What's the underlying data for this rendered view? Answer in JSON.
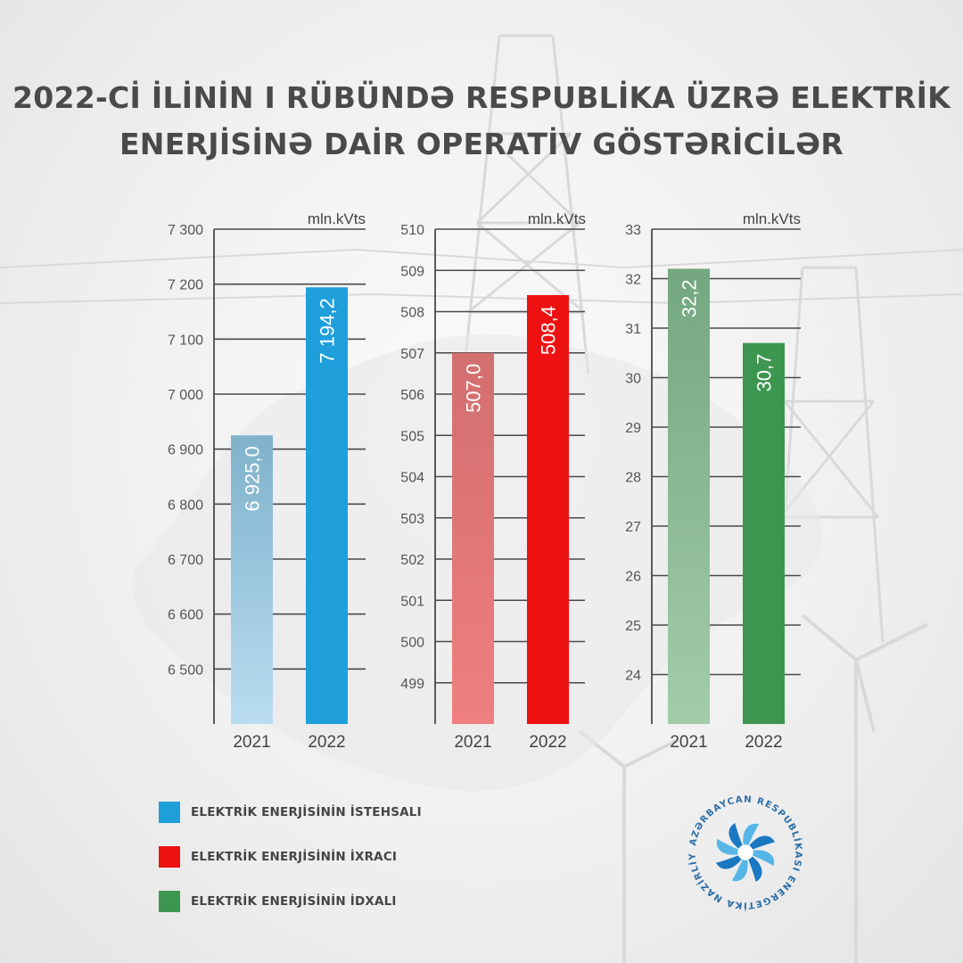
{
  "title": {
    "line1": "2022-Cİ İLİNİN I RÜBÜNDƏ RESPUBLİKA ÜZRƏ ELEKTRİK",
    "line2": "ENERJİSİNƏ DAİR OPERATİV GÖSTƏRİCİLƏR"
  },
  "chart_data": [
    {
      "type": "bar",
      "name": "production",
      "unit_label": "mln.kVts",
      "categories": [
        "2021",
        "2022"
      ],
      "values": [
        6925.0,
        7194.2
      ],
      "value_labels": [
        "6 925,0",
        "7 194,2"
      ],
      "ylim": [
        6400,
        7300
      ],
      "yticks": [
        6500,
        6600,
        6700,
        6800,
        6900,
        7000,
        7100,
        7200,
        7300
      ],
      "ytick_labels": [
        "6 500",
        "6 600",
        "6 700",
        "6 800",
        "6 900",
        "7 000",
        "7 100",
        "7 200",
        "7 300"
      ],
      "colors": [
        [
          "#b9dcf2",
          "#7fb2cb"
        ],
        [
          "#1e9fda",
          "#1e9fda"
        ]
      ],
      "grid": true
    },
    {
      "type": "bar",
      "name": "export",
      "unit_label": "mln.kVts",
      "categories": [
        "2021",
        "2022"
      ],
      "values": [
        507.0,
        508.4
      ],
      "value_labels": [
        "507,0",
        "508,4"
      ],
      "ylim": [
        498,
        510
      ],
      "yticks": [
        499,
        500,
        501,
        502,
        503,
        504,
        505,
        506,
        507,
        508,
        509,
        510
      ],
      "ytick_labels": [
        "499",
        "500",
        "501",
        "502",
        "503",
        "504",
        "505",
        "506",
        "507",
        "508",
        "509",
        "510"
      ],
      "colors": [
        [
          "#f07f7f",
          "#d26f6f"
        ],
        [
          "#ee1111",
          "#ee1111"
        ]
      ],
      "grid": true
    },
    {
      "type": "bar",
      "name": "import",
      "unit_label": "mln.kVts",
      "categories": [
        "2021",
        "2022"
      ],
      "values": [
        32.2,
        30.7
      ],
      "value_labels": [
        "32,2",
        "30,7"
      ],
      "ylim": [
        23,
        33
      ],
      "yticks": [
        24,
        25,
        26,
        27,
        28,
        29,
        30,
        31,
        32,
        33
      ],
      "ytick_labels": [
        "24",
        "25",
        "26",
        "27",
        "28",
        "29",
        "30",
        "31",
        "32",
        "33"
      ],
      "colors": [
        [
          "#a3ccaa",
          "#74a780"
        ],
        [
          "#3c9650",
          "#3c9650"
        ]
      ],
      "grid": true
    }
  ],
  "legend": [
    {
      "label": "ELEKTRİK ENERJİSİNİN İSTEHSALI",
      "color": "#1e9fda"
    },
    {
      "label": "ELEKTRİK ENERJİSİNİN İXRACI",
      "color": "#ee1111"
    },
    {
      "label": "ELEKTRİK ENERJİSİNİN İDXALI",
      "color": "#3c9650"
    }
  ],
  "logo": {
    "text": "AZƏRBAYCAN RESPUBLİKASI ENERGETİKA NAZİRLİYİ",
    "colors": [
      "#1a78c2",
      "#56b6e6",
      "#bfe3f5"
    ]
  }
}
